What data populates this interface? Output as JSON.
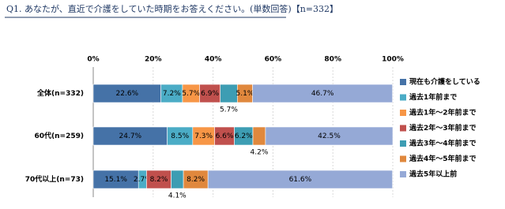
{
  "chart_data": {
    "type": "stacked-bar-horizontal",
    "title": "Q1. あなたが、直近で介護をしていた時期をお答えください。(単数回答)【n=332】",
    "categories": [
      "全体(n=332)",
      "60代(n=259)",
      "70代以上(n=73)"
    ],
    "series": [
      {
        "name": "現在も介護をしている",
        "color": "#4572a7",
        "values": [
          22.6,
          24.7,
          15.1
        ],
        "value_labels": [
          "22.6%",
          "24.7%",
          "15.1%"
        ]
      },
      {
        "name": "過去1年前まで",
        "color": "#4bacc6",
        "values": [
          7.2,
          8.5,
          2.7
        ],
        "value_labels": [
          "7.2%",
          "8.5%",
          "2.7%"
        ]
      },
      {
        "name": "過去1年～2年前まで",
        "color": "#f79646",
        "values": [
          5.7,
          7.3,
          0
        ],
        "value_labels": [
          "5.7%",
          "7.3%",
          null
        ]
      },
      {
        "name": "過去2年～3年前まで",
        "color": "#c0504d",
        "values": [
          6.9,
          6.6,
          8.2
        ],
        "value_labels": [
          "6.9%",
          "6.6%",
          "8.2%"
        ]
      },
      {
        "name": "過去3年～4年前まで",
        "color": "#3d9db3",
        "values": [
          5.7,
          6.2,
          4.1
        ],
        "value_labels": [
          "5.7%",
          "6.2%",
          "4.1%"
        ]
      },
      {
        "name": "過去4年～5年前まで",
        "color": "#e0883d",
        "values": [
          5.1,
          4.2,
          8.2
        ],
        "value_labels": [
          "5.1%",
          "4.2%",
          "8.2%"
        ]
      },
      {
        "name": "過去5年以上前",
        "color": "#95a9d6",
        "values": [
          46.7,
          42.5,
          61.6
        ],
        "value_labels": [
          "46.7%",
          "42.5%",
          "61.6%"
        ]
      }
    ],
    "xlim": [
      0,
      100
    ],
    "xticks": [
      {
        "value": 0,
        "label": "0%"
      },
      {
        "value": 20,
        "label": "20%"
      },
      {
        "value": 40,
        "label": "40%"
      },
      {
        "value": 60,
        "label": "60%"
      },
      {
        "value": 80,
        "label": "80%"
      },
      {
        "value": 100,
        "label": "100%"
      }
    ],
    "grid": true
  }
}
